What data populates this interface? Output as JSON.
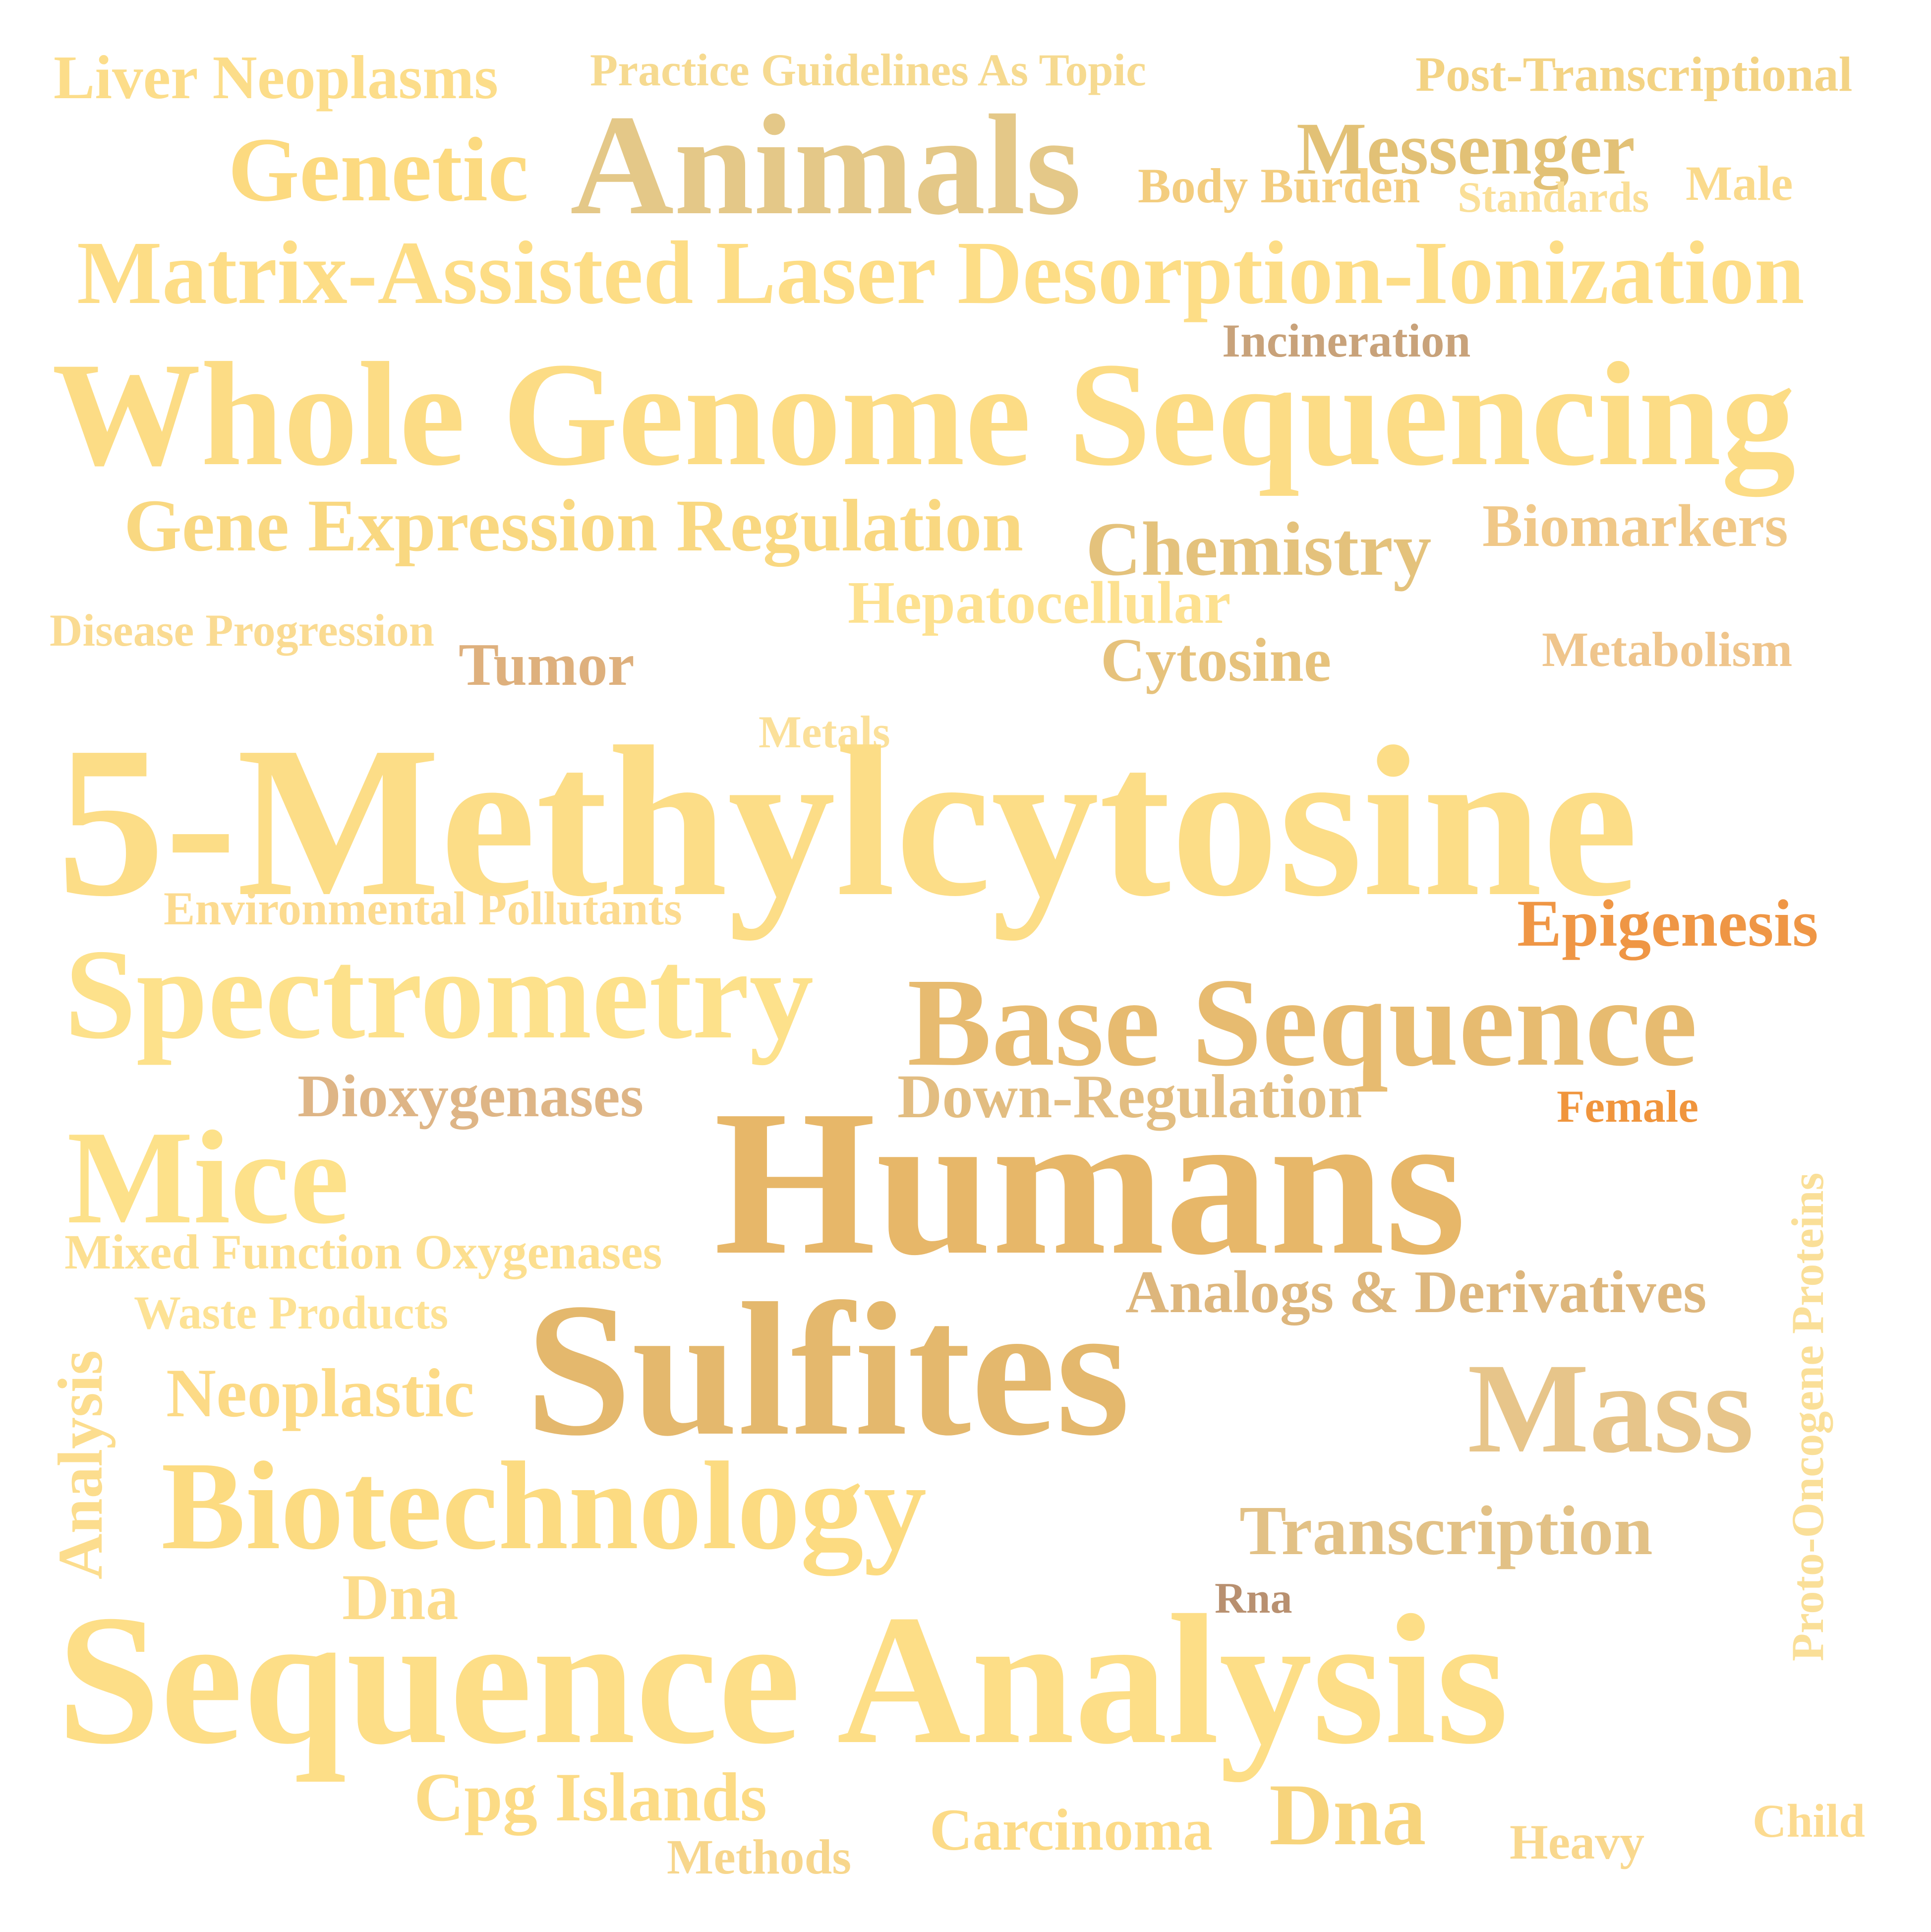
{
  "words": [
    {
      "text": "Liver Neoplasms",
      "color": "#FCDD8A"
    },
    {
      "text": "Practice Guidelines As Topic",
      "color": "#F6DA90"
    },
    {
      "text": "Post-Transcriptional",
      "color": "#F3D384"
    },
    {
      "text": "Animals",
      "color": "#E4C888"
    },
    {
      "text": "Genetic",
      "color": "#FCDA80"
    },
    {
      "text": "Messenger",
      "color": "#E2C176"
    },
    {
      "text": "Body Burden",
      "color": "#F3CD7F"
    },
    {
      "text": "Standards",
      "color": "#FADF98"
    },
    {
      "text": "Male",
      "color": "#FADA8C"
    },
    {
      "text": "Matrix-Assisted Laser Desorption-Ionization",
      "color": "#FDDD86"
    },
    {
      "text": "Incineration",
      "color": "#C8A27A"
    },
    {
      "text": "Whole Genome Sequencing",
      "color": "#FCDC85"
    },
    {
      "text": "Gene Expression Regulation",
      "color": "#F9D881"
    },
    {
      "text": "Chemistry",
      "color": "#E4C27C"
    },
    {
      "text": "Biomarkers",
      "color": "#F0C888"
    },
    {
      "text": "Hepatocellular",
      "color": "#FDE190"
    },
    {
      "text": "Disease Progression",
      "color": "#FADB92"
    },
    {
      "text": "Tumor",
      "color": "#DEB07D"
    },
    {
      "text": "Cytosine",
      "color": "#E6C27C"
    },
    {
      "text": "Metabolism",
      "color": "#EFC58C"
    },
    {
      "text": "Metals",
      "color": "#FBE09A"
    },
    {
      "text": "5-Methylcytosine",
      "color": "#FCDD87"
    },
    {
      "text": "Environmental Pollutants",
      "color": "#FCDB90"
    },
    {
      "text": "Epigenesis",
      "color": "#EF9645"
    },
    {
      "text": "Spectrometry",
      "color": "#FDE18B"
    },
    {
      "text": "Base Sequence",
      "color": "#E7BB70"
    },
    {
      "text": "Dioxygenases",
      "color": "#DEB586"
    },
    {
      "text": "Down-Regulation",
      "color": "#E2BD81"
    },
    {
      "text": "Female",
      "color": "#F0953D"
    },
    {
      "text": "Humans",
      "color": "#E7B769"
    },
    {
      "text": "Mice",
      "color": "#FDE18A"
    },
    {
      "text": "Mixed Function Oxygenases",
      "color": "#FCDF90"
    },
    {
      "text": "Analogs & Derivatives",
      "color": "#DDB67C"
    },
    {
      "text": "Waste Products",
      "color": "#FDE295"
    },
    {
      "text": "Sulfites",
      "color": "#E4B86D"
    },
    {
      "text": "Mass",
      "color": "#E7C58A"
    },
    {
      "text": "Neoplastic",
      "color": "#FCDA86"
    },
    {
      "text": "Biotechnology",
      "color": "#FCDB81"
    },
    {
      "text": "Transcription",
      "color": "#E2C186"
    },
    {
      "text": "Dna",
      "color": "#FCDC8C"
    },
    {
      "text": "Rna",
      "color": "#B89070"
    },
    {
      "text": "Sequence Analysis",
      "color": "#FDDE87"
    },
    {
      "text": "Cpg Islands",
      "color": "#FCDB85"
    },
    {
      "text": "Carcinoma",
      "color": "#FCDB88"
    },
    {
      "text": "Dna",
      "color": "#F7D47C"
    },
    {
      "text": "Methods",
      "color": "#F7D68C"
    },
    {
      "text": "Heavy",
      "color": "#F9D88E"
    },
    {
      "text": "Child",
      "color": "#FCDB90"
    },
    {
      "text": "Analysis",
      "color": "#FCDD8E"
    },
    {
      "text": "Proto-Oncogene Proteins",
      "color": "#FADF98"
    }
  ]
}
